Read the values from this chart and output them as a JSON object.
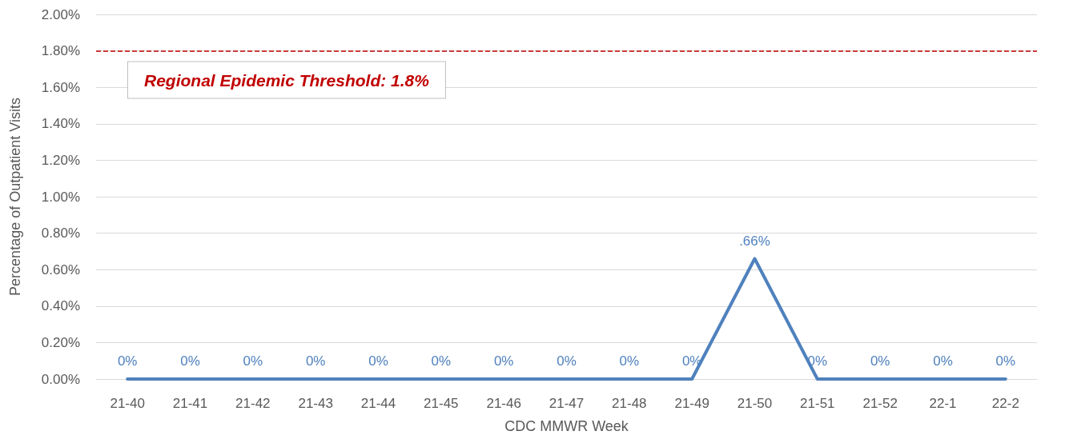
{
  "chart_data": {
    "type": "line",
    "xlabel": "CDC MMWR Week",
    "ylabel": "Percentage of Outpatient Visits",
    "categories": [
      "21-40",
      "21-41",
      "21-42",
      "21-43",
      "21-44",
      "21-45",
      "21-46",
      "21-47",
      "21-48",
      "21-49",
      "21-50",
      "21-51",
      "21-52",
      "22-1",
      "22-2"
    ],
    "series": [
      {
        "color": "#4f81bd",
        "values": [
          0,
          0,
          0,
          0,
          0,
          0,
          0,
          0,
          0,
          0,
          0.66,
          0,
          0,
          0,
          0
        ],
        "value_labels": [
          "0%",
          "0%",
          "0%",
          "0%",
          "0%",
          "0%",
          "0%",
          "0%",
          "0%",
          "0%",
          ".66%",
          "0%",
          "0%",
          "0%",
          "0%"
        ]
      }
    ],
    "ylim": [
      0,
      2
    ],
    "yticks": [
      {
        "value": 0,
        "label": "0.00%"
      },
      {
        "value": 0.2,
        "label": "0.20%"
      },
      {
        "value": 0.4,
        "label": "0.40%"
      },
      {
        "value": 0.6,
        "label": "0.60%"
      },
      {
        "value": 0.8,
        "label": "0.80%"
      },
      {
        "value": 1,
        "label": "1.00%"
      },
      {
        "value": 1.2,
        "label": "1.20%"
      },
      {
        "value": 1.4,
        "label": "1.40%"
      },
      {
        "value": 1.6,
        "label": "1.60%"
      },
      {
        "value": 1.8,
        "label": "1.80%"
      },
      {
        "value": 2,
        "label": "2.00%"
      }
    ],
    "ref_lines": [
      {
        "axis": "y",
        "value": 1.8,
        "label": "Regional Epidemic Threshold: 1.8%",
        "color": "#c00000",
        "line_style": "dashed"
      }
    ],
    "grid": "y",
    "marker": "none",
    "line_style": "solid"
  }
}
